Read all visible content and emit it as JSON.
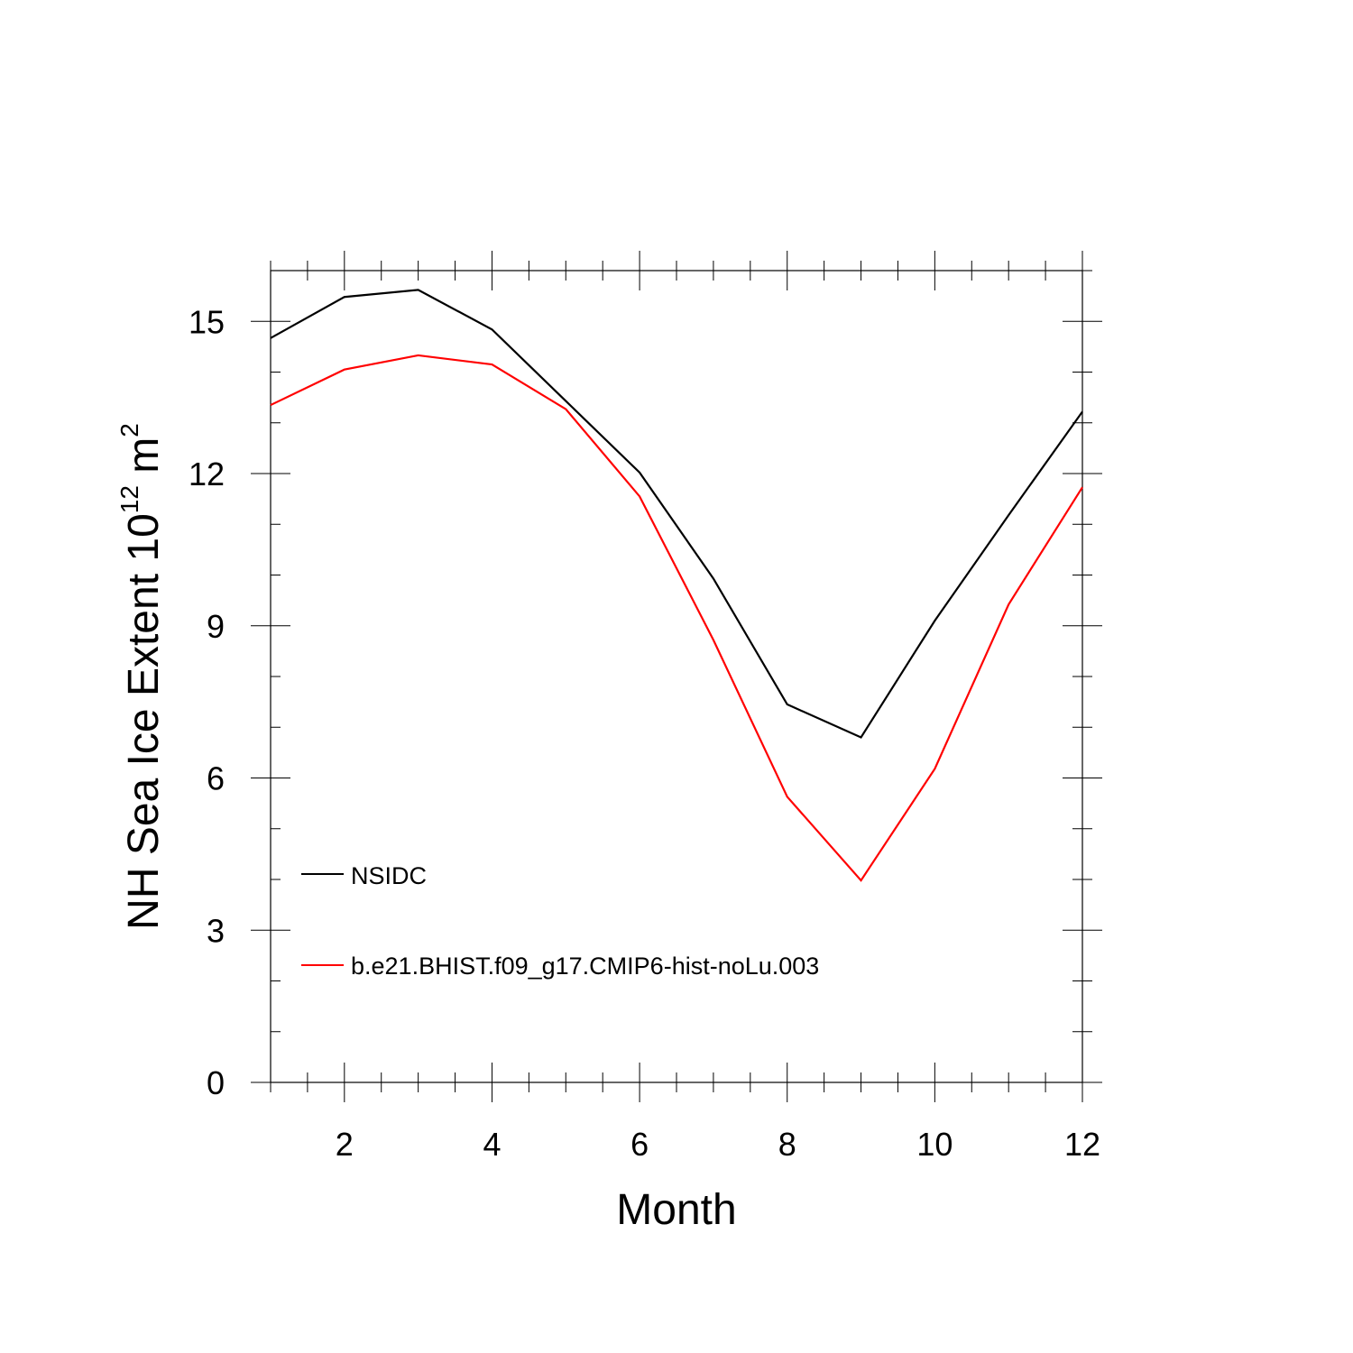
{
  "chart_data": {
    "type": "line",
    "title": "",
    "xlabel": "Month",
    "ylabel": {
      "base": "NH Sea Ice Extent 10",
      "exponent": "12",
      "unit": " m",
      "unit_exponent": "2"
    },
    "xlim": [
      1,
      12
    ],
    "ylim": [
      0,
      16
    ],
    "xticks": [
      2,
      4,
      6,
      8,
      10,
      12
    ],
    "yticks": [
      0,
      3,
      6,
      9,
      12,
      15
    ],
    "x": [
      1,
      2,
      3,
      4,
      5,
      6,
      7,
      8,
      9,
      10,
      11,
      12
    ],
    "series": [
      {
        "name": "NSIDC",
        "color": "#000000",
        "values": [
          14.67,
          15.48,
          15.62,
          14.84,
          13.43,
          12.02,
          9.93,
          7.45,
          6.8,
          9.1,
          11.18,
          13.22
        ]
      },
      {
        "name": "b.e21.BHIST.f09_g17.CMIP6-hist-noLu.003",
        "color": "#ff0000",
        "values": [
          13.35,
          14.05,
          14.33,
          14.15,
          13.27,
          11.55,
          8.72,
          5.63,
          3.98,
          6.18,
          9.42,
          11.73
        ]
      }
    ],
    "grid": false,
    "legend": "lower-left"
  }
}
